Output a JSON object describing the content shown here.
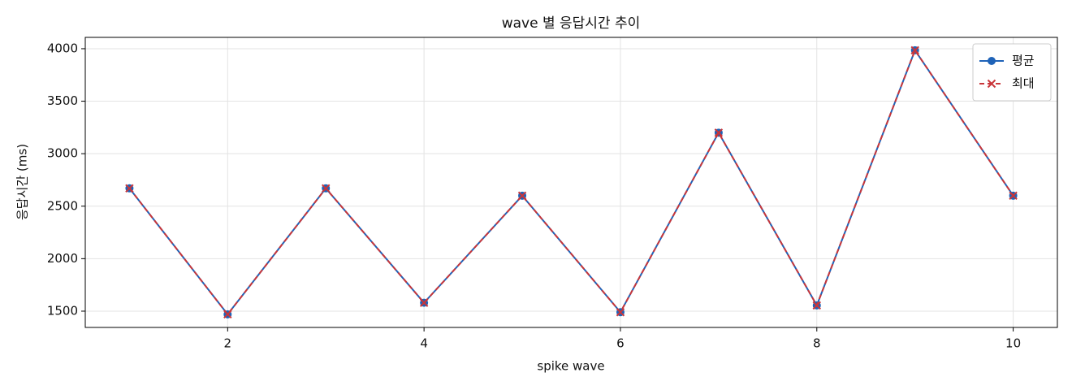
{
  "chart_data": {
    "type": "line",
    "title": "wave 별 응답시간 추이",
    "x_label": "spike wave",
    "y_label": "응답시간 (ms)",
    "x": [
      1,
      2,
      3,
      4,
      5,
      6,
      7,
      8,
      9,
      10
    ],
    "series": [
      {
        "name": "평균",
        "color": "#1f63b8",
        "marker": "circle",
        "dashed": false,
        "values": [
          2670,
          1470,
          2670,
          1580,
          2600,
          1490,
          3200,
          1555,
          3985,
          2600
        ]
      },
      {
        "name": "최대",
        "color": "#c9363a",
        "marker": "x",
        "dashed": true,
        "values": [
          2670,
          1470,
          2670,
          1580,
          2600,
          1490,
          3200,
          1555,
          3985,
          2600
        ]
      }
    ],
    "xlim": [
      0.55,
      10.45
    ],
    "ylim": [
      1345,
      4108
    ],
    "xticks": [
      2,
      4,
      6,
      8,
      10
    ],
    "yticks": [
      1500,
      2000,
      2500,
      3000,
      3500,
      4000
    ],
    "grid": true,
    "legend": "upper right"
  }
}
